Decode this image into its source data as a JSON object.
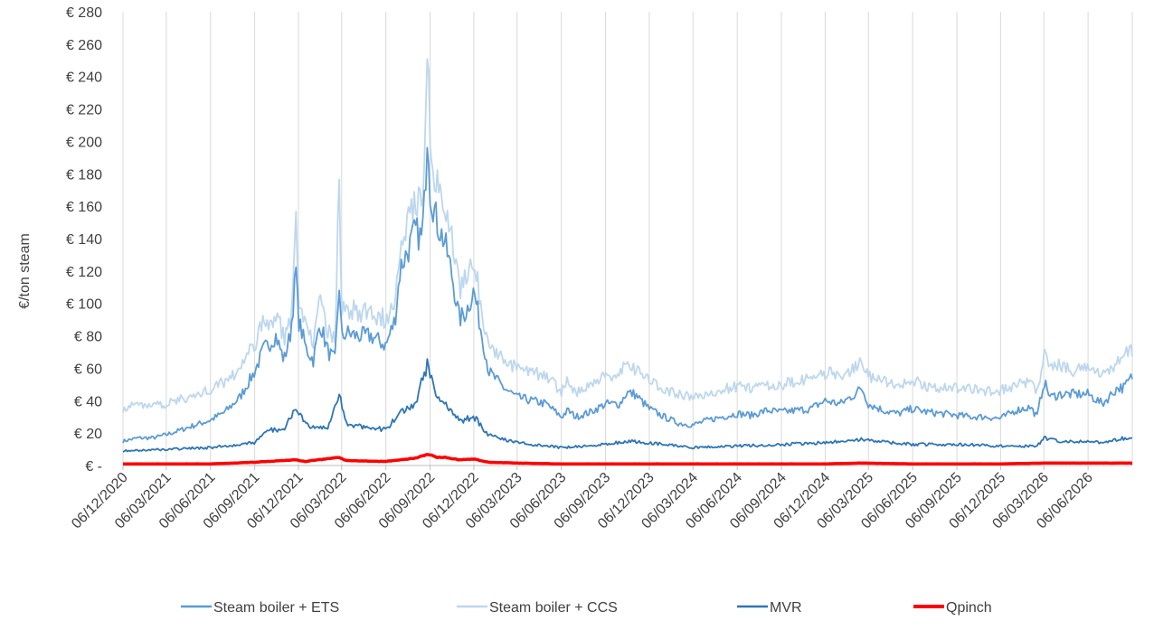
{
  "chart_data": {
    "type": "line",
    "title": "",
    "xlabel": "",
    "ylabel": "€/ton steam",
    "ylim": [
      0,
      280
    ],
    "x_range": [
      "2020-12-06",
      "2026-09-06"
    ],
    "y_ticks": [
      0,
      20,
      40,
      60,
      80,
      100,
      120,
      140,
      160,
      180,
      200,
      220,
      240,
      260,
      280
    ],
    "y_tick_labels": [
      "€ -",
      "€ 20",
      "€ 40",
      "€ 60",
      "€ 80",
      "€ 100",
      "€ 120",
      "€ 140",
      "€ 160",
      "€ 180",
      "€ 200",
      "€ 220",
      "€ 240",
      "€ 260",
      "€ 280"
    ],
    "x_tick_labels": [
      "06/12/2020",
      "06/03/2021",
      "06/06/2021",
      "06/09/2021",
      "06/12/2021",
      "06/03/2022",
      "06/06/2022",
      "06/09/2022",
      "06/12/2022",
      "06/03/2023",
      "06/06/2023",
      "06/09/2023",
      "06/12/2023",
      "06/03/2024",
      "06/06/2024",
      "06/09/2024",
      "06/12/2024",
      "06/03/2025",
      "06/06/2025",
      "06/09/2025",
      "06/12/2025",
      "06/03/2026",
      "06/06/2026"
    ],
    "grid": {
      "vertical": true,
      "horizontal": false
    },
    "legend_position": "bottom",
    "series": [
      {
        "name": "Steam boiler + ETS",
        "color": "#5b9bd5",
        "x": [
          "2020-12-06",
          "2021-01-06",
          "2021-02-06",
          "2021-03-06",
          "2021-04-06",
          "2021-05-06",
          "2021-06-06",
          "2021-07-06",
          "2021-08-06",
          "2021-09-06",
          "2021-09-25",
          "2021-10-06",
          "2021-10-20",
          "2021-11-06",
          "2021-11-20",
          "2021-12-01",
          "2021-12-06",
          "2021-12-22",
          "2022-01-06",
          "2022-01-20",
          "2022-02-06",
          "2022-02-20",
          "2022-03-01",
          "2022-03-06",
          "2022-03-15",
          "2022-04-06",
          "2022-05-06",
          "2022-06-06",
          "2022-06-25",
          "2022-07-06",
          "2022-07-25",
          "2022-08-06",
          "2022-08-20",
          "2022-08-26",
          "2022-09-01",
          "2022-09-06",
          "2022-09-20",
          "2022-10-06",
          "2022-10-20",
          "2022-11-06",
          "2022-11-20",
          "2022-12-06",
          "2022-12-20",
          "2023-01-06",
          "2023-02-06",
          "2023-03-06",
          "2023-04-06",
          "2023-05-06",
          "2023-06-06",
          "2023-06-20",
          "2023-07-06",
          "2023-08-06",
          "2023-09-06",
          "2023-10-06",
          "2023-10-20",
          "2023-11-06",
          "2023-12-06",
          "2024-01-06",
          "2024-02-06",
          "2024-03-06",
          "2024-04-06",
          "2024-05-06",
          "2024-06-06",
          "2024-07-06",
          "2024-08-06",
          "2024-09-06",
          "2024-10-06",
          "2024-11-06",
          "2024-12-06",
          "2025-01-06",
          "2025-02-06",
          "2025-02-20",
          "2025-03-06",
          "2025-04-06",
          "2025-05-06",
          "2025-06-06",
          "2025-07-06",
          "2025-08-06",
          "2025-09-06",
          "2025-10-06",
          "2025-11-06",
          "2025-12-06",
          "2026-01-06",
          "2026-02-06",
          "2026-02-20",
          "2026-03-06",
          "2026-03-20",
          "2026-04-06",
          "2026-05-06",
          "2026-06-06",
          "2026-07-06",
          "2026-08-06",
          "2026-08-20",
          "2026-09-06"
        ],
        "y": [
          15,
          17,
          17,
          19,
          22,
          25,
          28,
          33,
          42,
          58,
          72,
          75,
          80,
          65,
          82,
          120,
          90,
          72,
          65,
          88,
          70,
          65,
          112,
          78,
          82,
          80,
          80,
          74,
          90,
          122,
          135,
          145,
          140,
          165,
          215,
          170,
          150,
          138,
          120,
          90,
          95,
          108,
          85,
          58,
          48,
          42,
          40,
          38,
          30,
          34,
          30,
          33,
          38,
          38,
          45,
          44,
          35,
          30,
          26,
          25,
          28,
          30,
          32,
          31,
          34,
          33,
          34,
          35,
          40,
          38,
          44,
          48,
          38,
          34,
          32,
          35,
          33,
          32,
          31,
          30,
          30,
          29,
          34,
          36,
          30,
          52,
          42,
          44,
          44,
          44,
          38,
          48,
          48,
          55
        ]
      },
      {
        "name": "Steam boiler + CCS",
        "color": "#bdd7ee",
        "x": [
          "2020-12-06",
          "2021-01-06",
          "2021-02-06",
          "2021-03-06",
          "2021-04-06",
          "2021-05-06",
          "2021-06-06",
          "2021-07-06",
          "2021-08-06",
          "2021-09-06",
          "2021-09-25",
          "2021-10-06",
          "2021-10-20",
          "2021-11-06",
          "2021-11-20",
          "2021-12-01",
          "2021-12-06",
          "2021-12-22",
          "2022-01-06",
          "2022-01-20",
          "2022-02-06",
          "2022-02-20",
          "2022-03-01",
          "2022-03-06",
          "2022-03-15",
          "2022-04-06",
          "2022-05-06",
          "2022-06-06",
          "2022-06-25",
          "2022-07-06",
          "2022-07-25",
          "2022-08-06",
          "2022-08-20",
          "2022-08-26",
          "2022-09-01",
          "2022-09-06",
          "2022-09-20",
          "2022-10-06",
          "2022-10-20",
          "2022-11-06",
          "2022-11-20",
          "2022-12-06",
          "2022-12-20",
          "2023-01-06",
          "2023-02-06",
          "2023-03-06",
          "2023-04-06",
          "2023-05-06",
          "2023-06-06",
          "2023-06-20",
          "2023-07-06",
          "2023-08-06",
          "2023-09-06",
          "2023-10-06",
          "2023-10-20",
          "2023-11-06",
          "2023-12-06",
          "2024-01-06",
          "2024-02-06",
          "2024-03-06",
          "2024-04-06",
          "2024-05-06",
          "2024-06-06",
          "2024-07-06",
          "2024-08-06",
          "2024-09-06",
          "2024-10-06",
          "2024-11-06",
          "2024-12-06",
          "2025-01-06",
          "2025-02-06",
          "2025-02-20",
          "2025-03-06",
          "2025-04-06",
          "2025-05-06",
          "2025-06-06",
          "2025-07-06",
          "2025-08-06",
          "2025-09-06",
          "2025-10-06",
          "2025-11-06",
          "2025-12-06",
          "2026-01-06",
          "2026-02-06",
          "2026-02-20",
          "2026-03-06",
          "2026-03-20",
          "2026-04-06",
          "2026-05-06",
          "2026-06-06",
          "2026-07-06",
          "2026-08-06",
          "2026-08-20",
          "2026-09-06"
        ],
        "y": [
          35,
          38,
          37,
          38,
          41,
          43,
          47,
          52,
          60,
          75,
          90,
          85,
          95,
          78,
          90,
          150,
          105,
          85,
          78,
          100,
          82,
          78,
          182,
          92,
          98,
          95,
          94,
          90,
          105,
          140,
          155,
          165,
          165,
          198,
          260,
          195,
          175,
          160,
          140,
          110,
          115,
          128,
          100,
          75,
          65,
          60,
          57,
          56,
          45,
          52,
          45,
          50,
          55,
          56,
          66,
          60,
          52,
          47,
          44,
          42,
          44,
          47,
          49,
          48,
          50,
          50,
          52,
          53,
          57,
          56,
          60,
          63,
          55,
          52,
          50,
          52,
          49,
          48,
          48,
          47,
          46,
          46,
          50,
          52,
          46,
          68,
          60,
          62,
          58,
          60,
          56,
          64,
          68,
          70
        ]
      },
      {
        "name": "MVR",
        "color": "#2e75b6",
        "x": [
          "2020-12-06",
          "2021-03-06",
          "2021-06-06",
          "2021-09-06",
          "2021-10-06",
          "2021-11-06",
          "2021-12-01",
          "2021-12-20",
          "2022-01-06",
          "2022-02-06",
          "2022-03-01",
          "2022-03-15",
          "2022-04-06",
          "2022-05-06",
          "2022-06-06",
          "2022-07-06",
          "2022-08-06",
          "2022-09-01",
          "2022-09-20",
          "2022-10-06",
          "2022-11-06",
          "2022-12-06",
          "2023-01-06",
          "2023-03-06",
          "2023-06-06",
          "2023-09-06",
          "2023-10-20",
          "2023-12-06",
          "2024-03-06",
          "2024-06-06",
          "2024-09-06",
          "2024-12-06",
          "2025-02-20",
          "2025-06-06",
          "2025-09-06",
          "2025-12-06",
          "2026-02-20",
          "2026-03-06",
          "2026-04-06",
          "2026-06-06",
          "2026-07-06",
          "2026-09-06"
        ],
        "y": [
          9,
          10,
          11,
          14,
          22,
          22,
          37,
          25,
          23,
          23,
          45,
          26,
          24,
          24,
          22,
          32,
          38,
          63,
          42,
          40,
          27,
          30,
          19,
          14,
          11,
          13,
          15,
          14,
          11,
          12,
          13,
          14,
          16,
          13,
          13,
          12,
          12,
          17,
          15,
          15,
          14,
          18
        ]
      },
      {
        "name": "Qpinch",
        "color": "#ff0000",
        "x": [
          "2020-12-06",
          "2021-03-06",
          "2021-06-06",
          "2021-09-06",
          "2021-12-01",
          "2021-12-20",
          "2022-03-01",
          "2022-03-15",
          "2022-06-06",
          "2022-08-06",
          "2022-09-01",
          "2022-09-20",
          "2022-10-06",
          "2022-11-06",
          "2022-12-06",
          "2023-01-06",
          "2023-03-06",
          "2023-06-06",
          "2023-12-06",
          "2024-06-06",
          "2024-12-06",
          "2025-02-20",
          "2025-06-06",
          "2025-12-06",
          "2026-03-06",
          "2026-06-06",
          "2026-09-06"
        ],
        "y": [
          1,
          1,
          1,
          2,
          3.5,
          2.5,
          5,
          3,
          2.5,
          4.5,
          7,
          5,
          5,
          3.5,
          4,
          2,
          1.5,
          1,
          1,
          1,
          1,
          1.5,
          1,
          1,
          1.5,
          1.5,
          1.5
        ]
      }
    ]
  }
}
